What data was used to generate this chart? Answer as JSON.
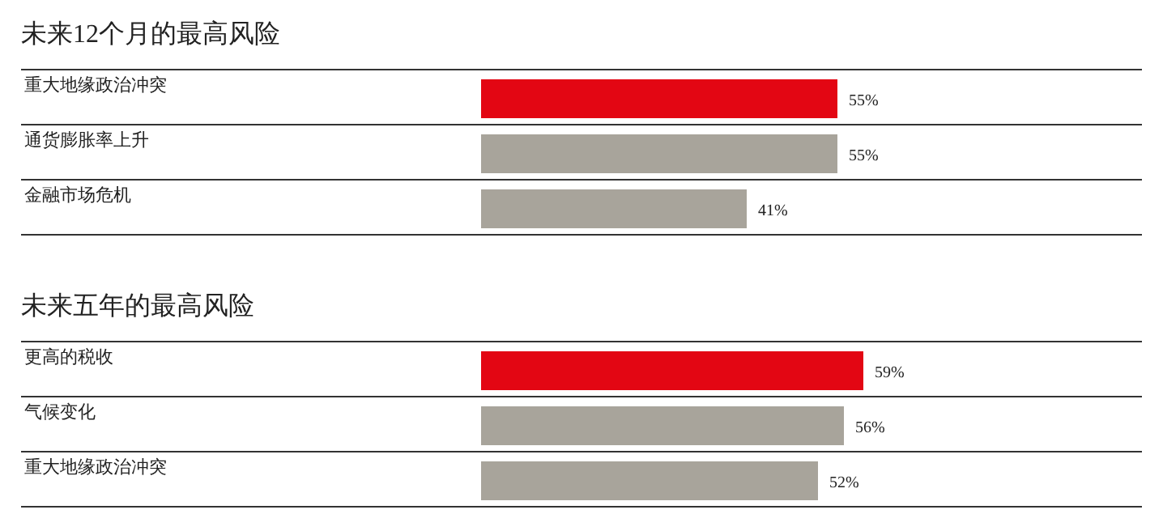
{
  "chart_data": [
    {
      "type": "bar",
      "orientation": "horizontal",
      "title": "未来12个月的最高风险",
      "categories": [
        "重大地缘政治冲突",
        "通货膨胀率上升",
        "金融市场危机"
      ],
      "values": [
        55,
        55,
        41
      ],
      "value_labels": [
        "55%",
        "55%",
        "41%"
      ],
      "colors": [
        "#e30613",
        "#a8a49b",
        "#a8a49b"
      ]
    },
    {
      "type": "bar",
      "orientation": "horizontal",
      "title": "未来五年的最高风险",
      "categories": [
        "更高的税收",
        "气候变化",
        "重大地缘政治冲突"
      ],
      "values": [
        59,
        56,
        52
      ],
      "value_labels": [
        "59%",
        "56%",
        "52%"
      ],
      "colors": [
        "#e30613",
        "#a8a49b",
        "#a8a49b"
      ]
    }
  ]
}
